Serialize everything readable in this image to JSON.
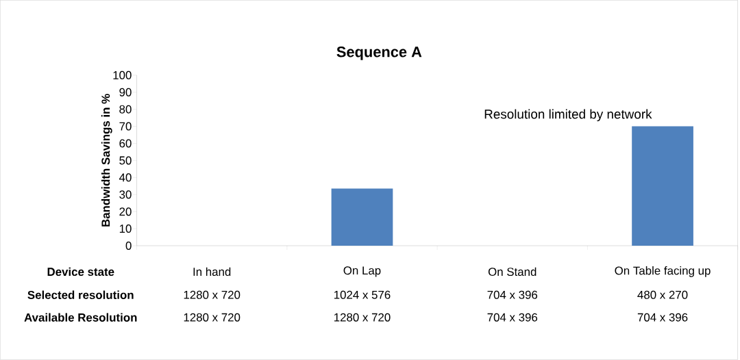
{
  "chart_data": {
    "type": "bar",
    "title": "Sequence A",
    "xlabel": "Device state",
    "ylabel": "Bandwidth Savings in %",
    "categories": [
      "In hand",
      "On Lap",
      "On Stand",
      "On Table facing up"
    ],
    "values": [
      0,
      33.5,
      0,
      70
    ],
    "color": "#4f81bd",
    "ylim": [
      0,
      100
    ],
    "yticks": [
      0,
      10,
      20,
      30,
      40,
      50,
      60,
      70,
      80,
      90,
      100
    ],
    "grid": false,
    "annotations": [
      "Resolution limited by network",
      "Selected resolution",
      "Available Resolution",
      "1280 x 720",
      "1024 x 576",
      "704 x 396",
      "480 x 270",
      "1280 x 720",
      "1280 x 720",
      "704 x 396",
      "704 x 396"
    ]
  }
}
